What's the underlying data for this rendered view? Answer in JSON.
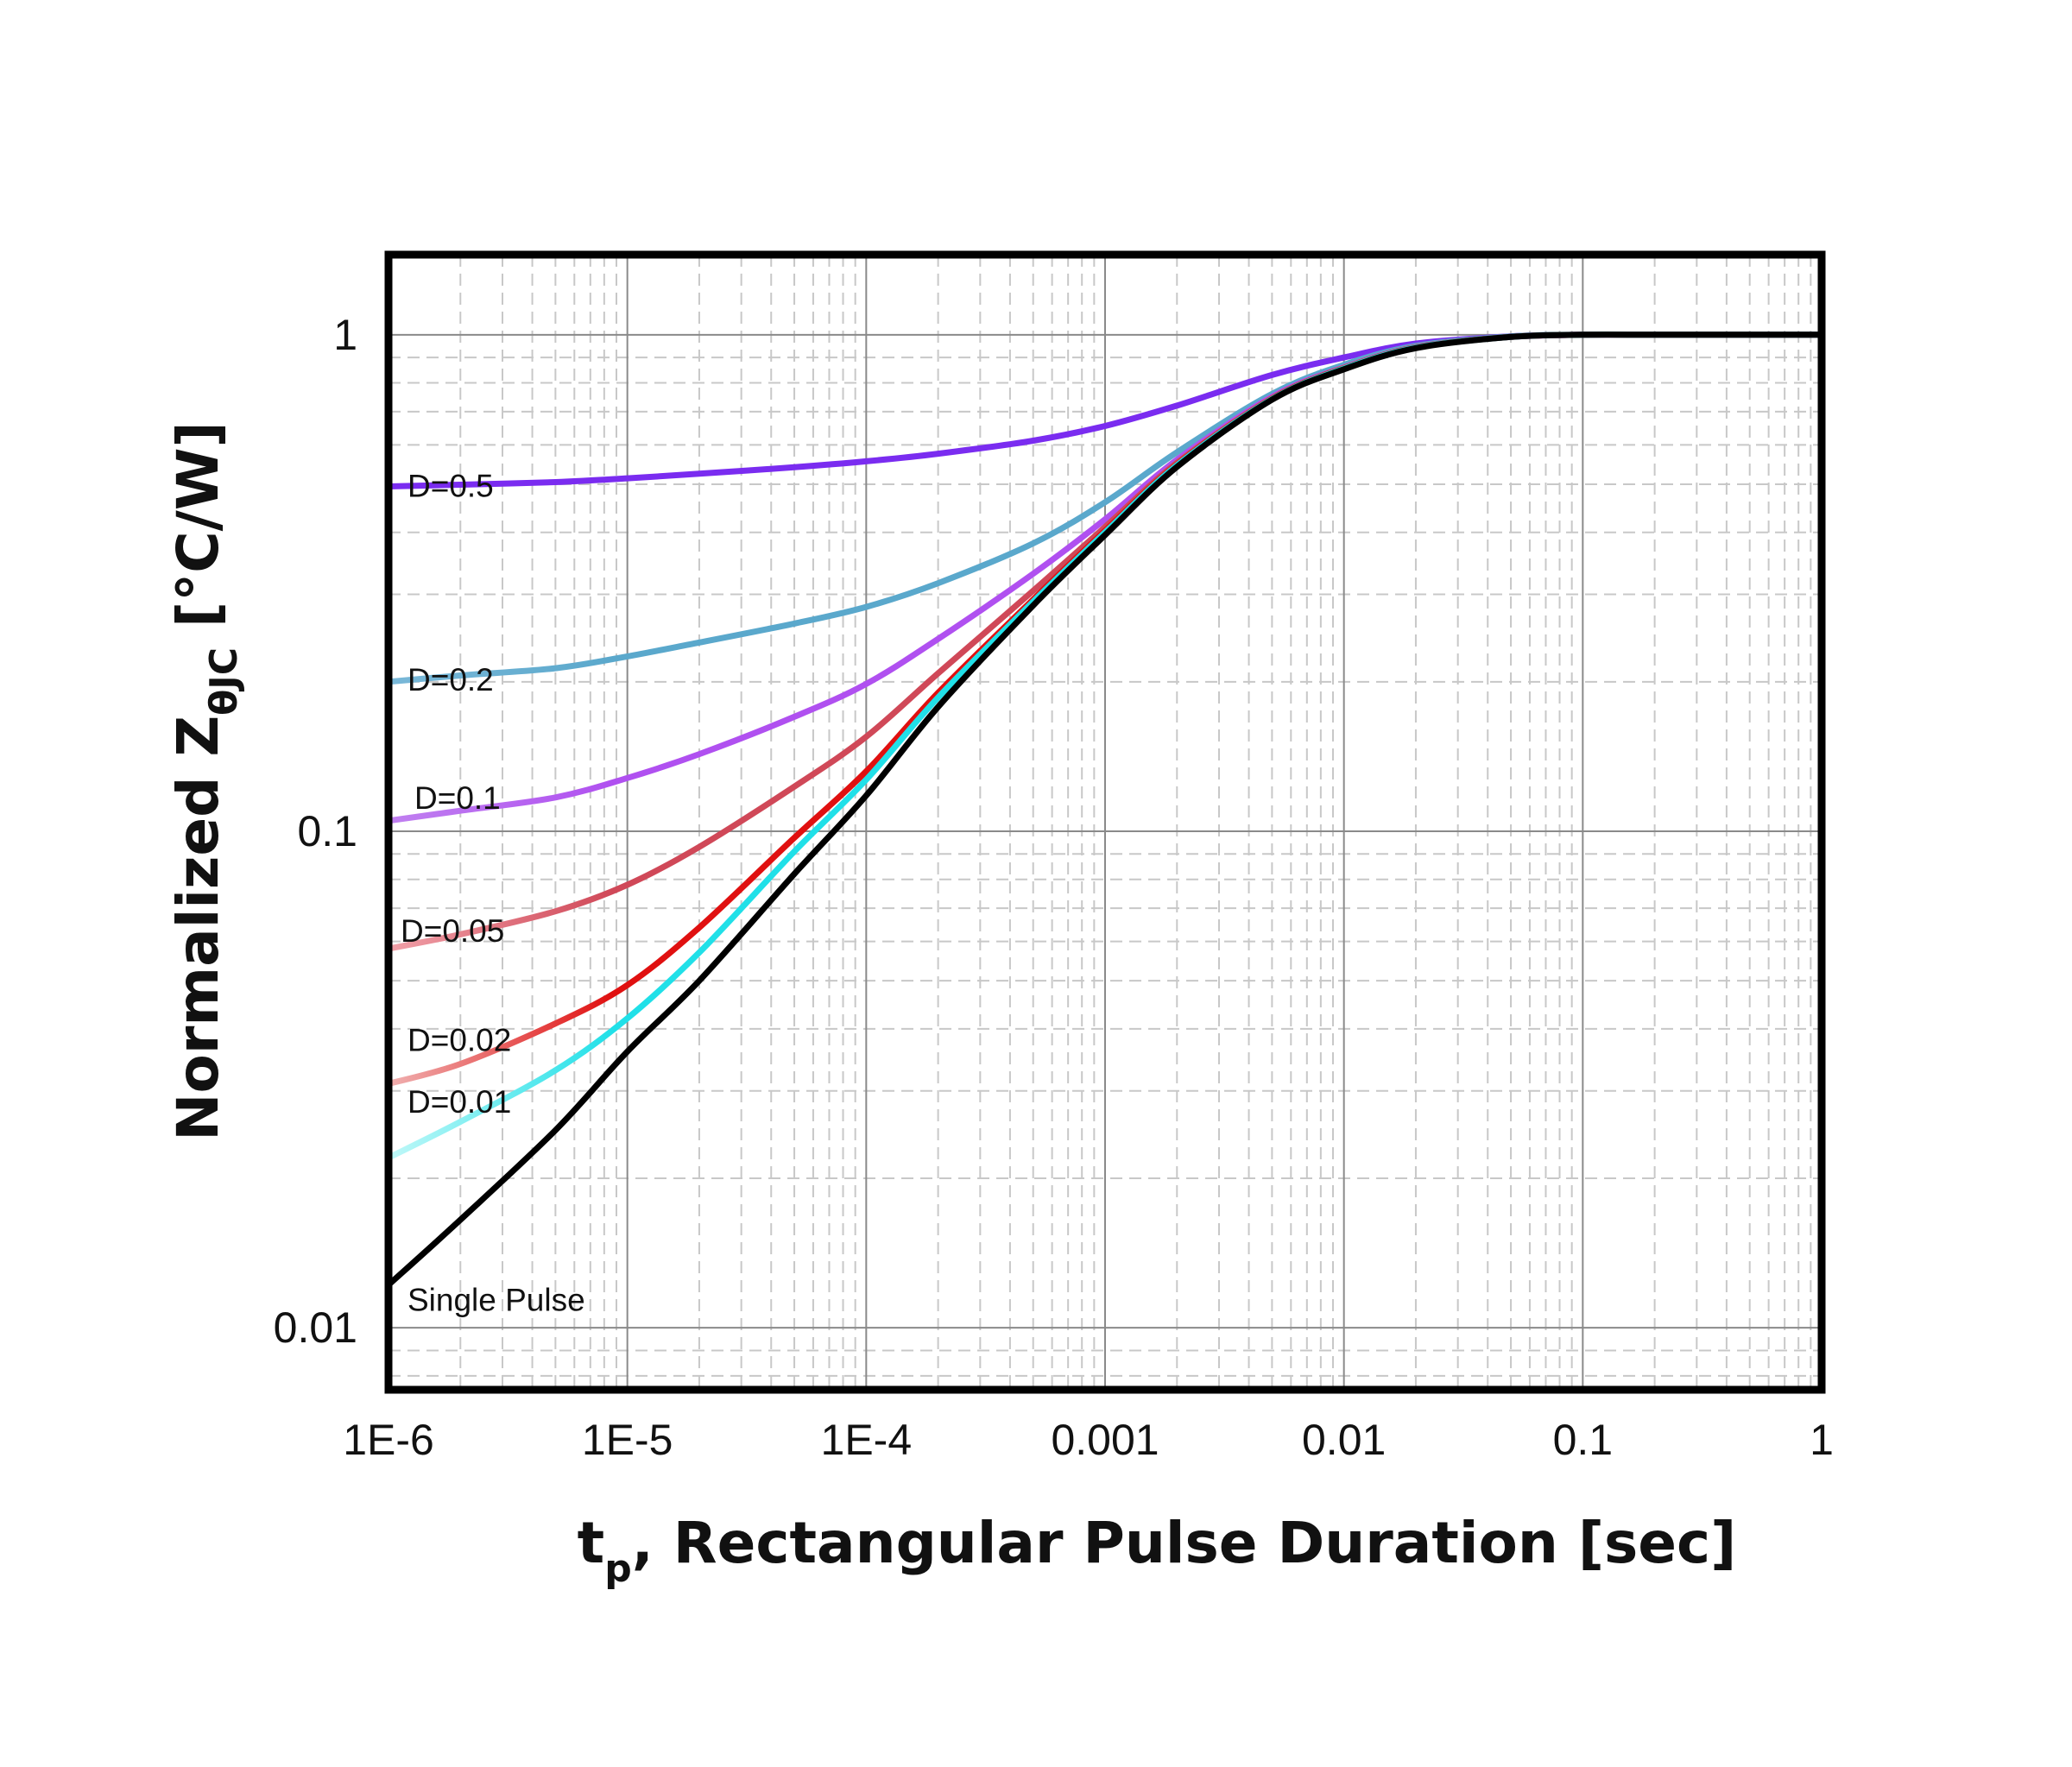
{
  "chart_data": {
    "type": "line",
    "xscale": "log",
    "yscale": "log",
    "xlim": [
      1e-06,
      1
    ],
    "ylim": [
      0.0075,
      1.45
    ],
    "grid": true,
    "legend": "inline-labels-left",
    "xlabel": {
      "main": "t",
      "sub": "p",
      "rest": ", Rectangular Pulse Duration [sec]"
    },
    "ylabel": {
      "main": "Normalized Z",
      "sub": "θJC",
      "rest": " [°C/W]"
    },
    "x_ticks": [
      {
        "value": 1e-06,
        "label": "1E-6"
      },
      {
        "value": 1e-05,
        "label": "1E-5"
      },
      {
        "value": 0.0001,
        "label": "1E-4"
      },
      {
        "value": 0.001,
        "label": "0.001"
      },
      {
        "value": 0.01,
        "label": "0.01"
      },
      {
        "value": 0.1,
        "label": "0.1"
      },
      {
        "value": 1,
        "label": "1"
      }
    ],
    "y_ticks": [
      {
        "value": 0.01,
        "label": "0.01"
      },
      {
        "value": 0.1,
        "label": "0.1"
      },
      {
        "value": 1,
        "label": "1"
      }
    ],
    "x": [
      1e-06,
      2e-06,
      5e-06,
      1e-05,
      2e-05,
      5e-05,
      0.0001,
      0.0002,
      0.0005,
      0.001,
      0.002,
      0.005,
      0.01,
      0.02,
      0.05,
      0.1,
      0.2,
      0.5,
      1
    ],
    "series": [
      {
        "name": "D=0.5",
        "color_start": "#7a2cf0",
        "color_end": "#7a2cf0",
        "values": [
          0.495,
          0.499,
          0.505,
          0.514,
          0.525,
          0.541,
          0.556,
          0.576,
          0.612,
          0.655,
          0.72,
          0.83,
          0.9,
          0.96,
          0.993,
          1.0,
          1.0,
          1.0,
          1.0
        ]
      },
      {
        "name": "D=0.2",
        "color_start": "#7ab8d8",
        "color_end": "#5aa8cc",
        "values": [
          0.2,
          0.206,
          0.213,
          0.225,
          0.24,
          0.262,
          0.283,
          0.316,
          0.38,
          0.46,
          0.58,
          0.76,
          0.87,
          0.95,
          0.992,
          1.0,
          1.0,
          1.0,
          1.0
        ]
      },
      {
        "name": "D=0.1",
        "color_start": "#c080f0",
        "color_end": "#b050f0",
        "values": [
          0.105,
          0.11,
          0.117,
          0.128,
          0.143,
          0.17,
          0.198,
          0.244,
          0.33,
          0.425,
          0.56,
          0.75,
          0.86,
          0.945,
          0.99,
          1.0,
          1.0,
          1.0,
          1.0
        ]
      },
      {
        "name": "D=0.05",
        "color_start": "#f0a0a8",
        "color_end": "#d04858",
        "values": [
          0.058,
          0.062,
          0.069,
          0.078,
          0.093,
          0.123,
          0.155,
          0.208,
          0.305,
          0.41,
          0.552,
          0.745,
          0.858,
          0.944,
          0.99,
          1.0,
          1.0,
          1.0,
          1.0
        ]
      },
      {
        "name": "D=0.02",
        "color_start": "#f0b0b0",
        "color_end": "#e01010",
        "values": [
          0.031,
          0.034,
          0.041,
          0.049,
          0.064,
          0.097,
          0.132,
          0.19,
          0.293,
          0.403,
          0.548,
          0.743,
          0.856,
          0.943,
          0.99,
          1.0,
          1.0,
          1.0,
          1.0
        ]
      },
      {
        "name": "D=0.01",
        "color_start": "#c0f8f8",
        "color_end": "#20e0e8",
        "values": [
          0.022,
          0.026,
          0.033,
          0.042,
          0.057,
          0.091,
          0.127,
          0.186,
          0.29,
          0.4,
          0.546,
          0.742,
          0.855,
          0.942,
          0.99,
          1.0,
          1.0,
          1.0,
          1.0
        ]
      },
      {
        "name": "Single Pulse",
        "color_start": "#000000",
        "color_end": "#000000",
        "values": [
          0.0122,
          0.0165,
          0.025,
          0.036,
          0.05,
          0.082,
          0.118,
          0.178,
          0.285,
          0.395,
          0.542,
          0.74,
          0.852,
          0.94,
          0.99,
          1.0,
          1.0,
          1.0,
          1.0
        ]
      }
    ]
  }
}
